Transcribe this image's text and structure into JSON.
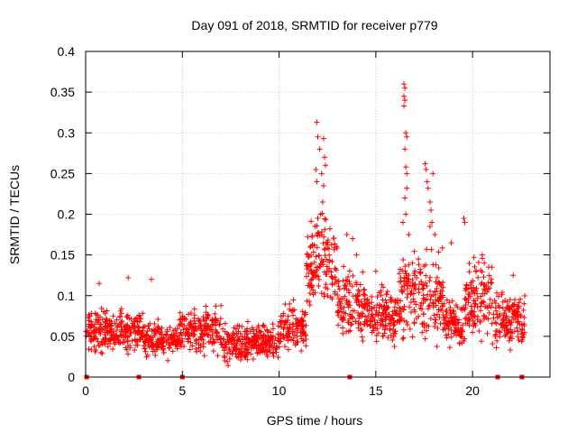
{
  "chart_data": {
    "type": "scatter",
    "title": "Day 091 of 2018, SRMTID for receiver p779",
    "xlabel": "GPS time / hours",
    "ylabel": "SRMTID / TECUs",
    "xlim": [
      0,
      24
    ],
    "ylim": [
      0,
      0.4
    ],
    "xticks": [
      0,
      5,
      10,
      15,
      20
    ],
    "xtick_labels": [
      "0",
      "5",
      "10",
      "15",
      "20"
    ],
    "yticks": [
      0,
      0.05,
      0.1,
      0.15,
      0.2,
      0.25,
      0.3,
      0.35,
      0.4
    ],
    "ytick_labels": [
      "0",
      "0.05",
      "0.1",
      "0.15",
      "0.2",
      "0.25",
      "0.3",
      "0.35",
      "0.4"
    ],
    "grid": true,
    "marker": "+",
    "series_color": "#ff0000",
    "zero_markers_x": [
      0.05,
      2.75,
      5.0,
      13.65,
      21.3,
      22.55
    ],
    "segments": [
      {
        "x": [
          0.0,
          3.0
        ],
        "base": 0.058,
        "spread": 0.022
      },
      {
        "x": [
          3.0,
          4.8
        ],
        "base": 0.045,
        "spread": 0.018
      },
      {
        "x": [
          4.8,
          7.0
        ],
        "base": 0.058,
        "spread": 0.024
      },
      {
        "x": [
          7.0,
          10.0
        ],
        "base": 0.042,
        "spread": 0.02
      },
      {
        "x": [
          10.0,
          11.4
        ],
        "base": 0.06,
        "spread": 0.025
      },
      {
        "x": [
          11.4,
          13.0
        ],
        "base": 0.14,
        "spread": 0.045
      },
      {
        "x": [
          13.0,
          14.5
        ],
        "base": 0.09,
        "spread": 0.04
      },
      {
        "x": [
          14.5,
          16.2
        ],
        "base": 0.075,
        "spread": 0.03
      },
      {
        "x": [
          16.2,
          18.5
        ],
        "base": 0.1,
        "spread": 0.045
      },
      {
        "x": [
          18.5,
          19.6
        ],
        "base": 0.065,
        "spread": 0.025
      },
      {
        "x": [
          19.6,
          21.0
        ],
        "base": 0.1,
        "spread": 0.04
      },
      {
        "x": [
          21.0,
          22.7
        ],
        "base": 0.07,
        "spread": 0.03
      }
    ],
    "points": [
      [
        11.95,
        0.313
      ],
      [
        12.0,
        0.295
      ],
      [
        12.1,
        0.28
      ],
      [
        11.9,
        0.255
      ],
      [
        11.95,
        0.24
      ],
      [
        12.2,
        0.25
      ],
      [
        12.3,
        0.293
      ],
      [
        12.35,
        0.27
      ],
      [
        12.4,
        0.26
      ],
      [
        12.3,
        0.235
      ],
      [
        12.25,
        0.215
      ],
      [
        12.0,
        0.195
      ],
      [
        11.85,
        0.185
      ],
      [
        12.15,
        0.2
      ],
      [
        11.7,
        0.172
      ],
      [
        16.45,
        0.36
      ],
      [
        16.5,
        0.355
      ],
      [
        16.45,
        0.345
      ],
      [
        16.5,
        0.34
      ],
      [
        16.45,
        0.333
      ],
      [
        16.55,
        0.3
      ],
      [
        16.6,
        0.295
      ],
      [
        16.5,
        0.28
      ],
      [
        16.55,
        0.258
      ],
      [
        16.6,
        0.25
      ],
      [
        16.6,
        0.232
      ],
      [
        16.5,
        0.22
      ],
      [
        16.55,
        0.2
      ],
      [
        16.4,
        0.19
      ],
      [
        16.7,
        0.175
      ],
      [
        17.55,
        0.262
      ],
      [
        17.6,
        0.255
      ],
      [
        17.65,
        0.24
      ],
      [
        17.7,
        0.232
      ],
      [
        17.8,
        0.215
      ],
      [
        17.85,
        0.205
      ],
      [
        17.9,
        0.19
      ],
      [
        17.95,
        0.25
      ],
      [
        18.05,
        0.175
      ],
      [
        17.8,
        0.185
      ],
      [
        19.55,
        0.195
      ],
      [
        19.6,
        0.19
      ],
      [
        18.9,
        0.165
      ],
      [
        20.5,
        0.15
      ],
      [
        13.5,
        0.175
      ],
      [
        13.8,
        0.17
      ],
      [
        14.0,
        0.15
      ],
      [
        16.9,
        0.14
      ],
      [
        17.2,
        0.145
      ],
      [
        21.0,
        0.135
      ],
      [
        2.2,
        0.122
      ],
      [
        3.4,
        0.12
      ],
      [
        0.7,
        0.115
      ],
      [
        22.1,
        0.125
      ],
      [
        15.0,
        0.13
      ]
    ]
  }
}
